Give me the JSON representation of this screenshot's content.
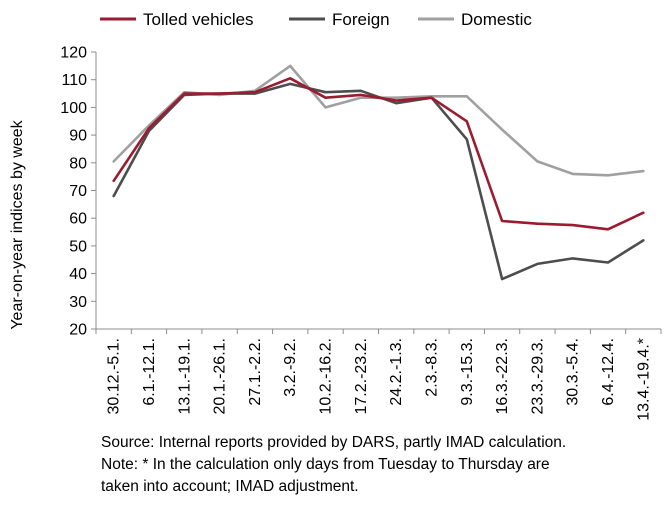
{
  "chart_data": {
    "type": "line",
    "ylabel": "Year-on-year indices by week",
    "xlabel": "",
    "ylim": [
      20,
      120
    ],
    "yticks": [
      20,
      30,
      40,
      50,
      60,
      70,
      80,
      90,
      100,
      110,
      120
    ],
    "grid": false,
    "legend_position": "top",
    "categories": [
      "30.12.-5.1.",
      "6.1.-12.1.",
      "13.1.-19.1.",
      "20.1.-26.1.",
      "27.1.-2.2.",
      "3.2.-9.2.",
      "10.2.-16.2.",
      "17.2.-23.2.",
      "24.2.-1.3.",
      "2.3.-8.3.",
      "9.3.-15.3.",
      "16.3.-22.3.",
      "23.3.-29.3.",
      "30.3.-5.4.",
      "6.4.-12.4.",
      "13.4.-19.4.*"
    ],
    "series": [
      {
        "name": "Tolled vehicles",
        "color": "#9b1b30",
        "values": [
          73.5,
          92.5,
          105,
          105,
          105.5,
          110.5,
          103.5,
          104.5,
          102.5,
          103.5,
          95,
          59,
          58,
          57.5,
          56,
          62
        ]
      },
      {
        "name": "Foreign",
        "color": "#4d4d4d",
        "values": [
          68,
          91.5,
          104.5,
          105,
          105,
          108.5,
          105.5,
          106,
          101.5,
          103.5,
          88.5,
          38,
          43.5,
          45.5,
          44,
          52
        ]
      },
      {
        "name": "Domestic",
        "color": "#a0a0a0",
        "values": [
          80.5,
          93.5,
          105.5,
          104.5,
          106,
          115,
          100,
          103.5,
          103.5,
          104,
          104,
          92,
          80.5,
          76,
          75.5,
          77
        ]
      }
    ]
  },
  "notes": {
    "source": "Source: Internal reports provided by DARS, partly IMAD calculation.",
    "note_line1": "Note: * In the calculation only days from Tuesday to Thursday are",
    "note_line2": "taken into account; IMAD adjustment."
  }
}
